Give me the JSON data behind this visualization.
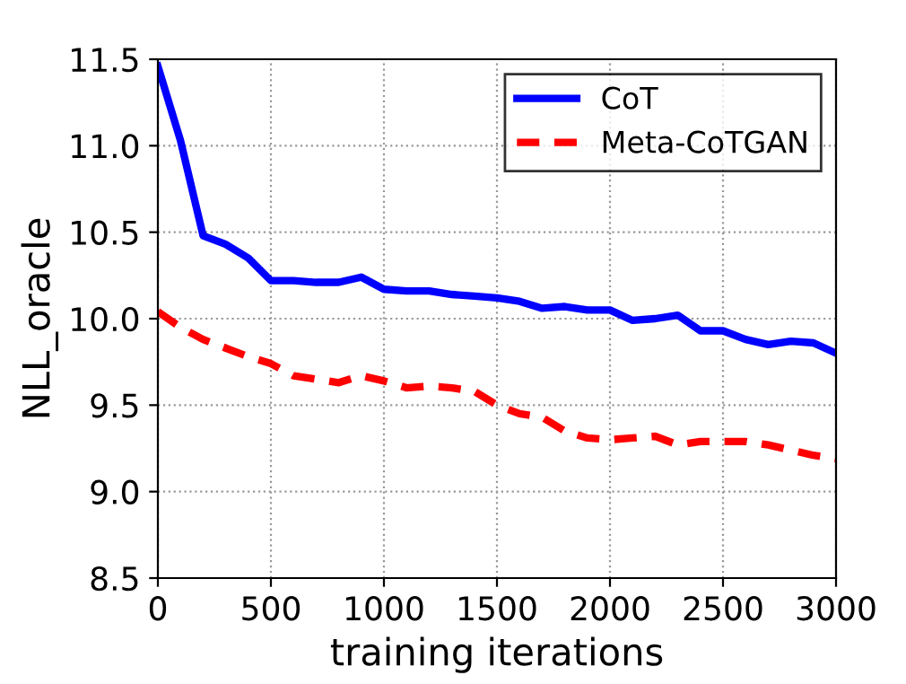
{
  "chart_data": {
    "type": "line",
    "xlabel": "training iterations",
    "ylabel": "NLL_oracle",
    "x": [
      0,
      100,
      200,
      300,
      400,
      500,
      600,
      700,
      800,
      900,
      1000,
      1100,
      1200,
      1300,
      1400,
      1500,
      1600,
      1700,
      1800,
      1900,
      2000,
      2100,
      2200,
      2300,
      2400,
      2500,
      2600,
      2700,
      2800,
      2900,
      3000
    ],
    "series": [
      {
        "name": "CoT",
        "color": "#0000ff",
        "line_style": "solid",
        "values": [
          11.46,
          11.03,
          10.48,
          10.43,
          10.35,
          10.22,
          10.22,
          10.21,
          10.21,
          10.24,
          10.17,
          10.16,
          10.16,
          10.14,
          10.13,
          10.12,
          10.1,
          10.06,
          10.07,
          10.05,
          10.05,
          9.99,
          10.0,
          10.02,
          9.93,
          9.93,
          9.88,
          9.85,
          9.87,
          9.86,
          9.8
        ]
      },
      {
        "name": "Meta-CoTGAN",
        "color": "#ff0000",
        "line_style": "dashed",
        "values": [
          10.04,
          9.95,
          9.88,
          9.83,
          9.78,
          9.74,
          9.67,
          9.65,
          9.63,
          9.67,
          9.64,
          9.6,
          9.61,
          9.6,
          9.58,
          9.5,
          9.45,
          9.43,
          9.35,
          9.31,
          9.3,
          9.31,
          9.32,
          9.27,
          9.29,
          9.29,
          9.29,
          9.27,
          9.24,
          9.21,
          9.19
        ]
      }
    ],
    "xlim": [
      0,
      3000
    ],
    "xticks": [
      0,
      500,
      1000,
      1500,
      2000,
      2500,
      3000
    ],
    "ylim": [
      8.5,
      11.5
    ],
    "yticks": [
      {
        "value": 8.5,
        "label": "8.5"
      },
      {
        "value": 9.0,
        "label": "9.0"
      },
      {
        "value": 9.5,
        "label": "9.5"
      },
      {
        "value": 10.0,
        "label": "10.0"
      },
      {
        "value": 10.5,
        "label": "10.5"
      },
      {
        "value": 11.0,
        "label": "11.0"
      },
      {
        "value": 11.5,
        "label": "11.5"
      }
    ],
    "grid": true,
    "legend": "top right"
  }
}
